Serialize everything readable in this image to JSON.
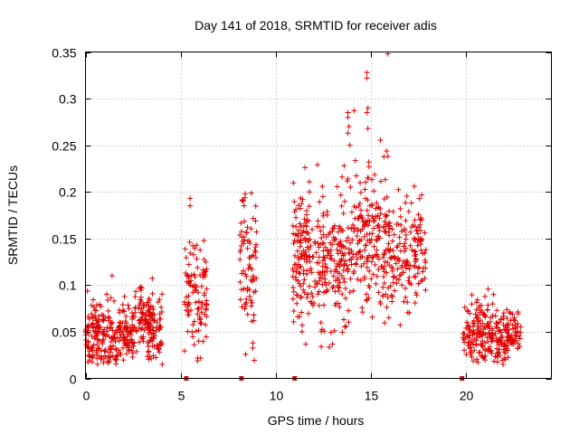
{
  "chart_data": {
    "type": "scatter",
    "title": "Day 141 of 2018, SRMTID for receiver adis",
    "xlabel": "GPS time / hours",
    "ylabel": "SRMTID / TECUs",
    "xlim": [
      0,
      24.5
    ],
    "ylim": [
      0,
      0.35
    ],
    "xticks": [
      0,
      5,
      10,
      15,
      20
    ],
    "yticks": [
      0,
      0.05,
      0.1,
      0.15,
      0.2,
      0.25,
      0.3,
      0.35
    ],
    "xtick_labels": [
      "0",
      "5",
      "10",
      "15",
      "20"
    ],
    "ytick_labels": [
      "0",
      "0.05",
      "0.1",
      "0.15",
      "0.2",
      "0.25",
      "0.3",
      "0.35"
    ],
    "grid": true,
    "marker": "+",
    "color": "#e00000",
    "gap_markers_x": [
      5.3,
      8.2,
      11.0,
      19.8
    ],
    "clusters": [
      {
        "x_start": 0.0,
        "x_end": 1.7,
        "y_center": 0.045,
        "y_spread": 0.018,
        "count": 170
      },
      {
        "x_start": 1.7,
        "x_end": 2.6,
        "y_center": 0.05,
        "y_spread": 0.015,
        "count": 90
      },
      {
        "x_start": 2.6,
        "x_end": 3.6,
        "y_center": 0.065,
        "y_spread": 0.017,
        "count": 90
      },
      {
        "x_start": 3.3,
        "x_end": 4.1,
        "y_center": 0.05,
        "y_spread": 0.016,
        "count": 60
      },
      {
        "x_start": 5.2,
        "x_end": 5.8,
        "y_center": 0.095,
        "y_spread": 0.03,
        "count": 50
      },
      {
        "x_start": 5.8,
        "x_end": 6.4,
        "y_center": 0.09,
        "y_spread": 0.028,
        "count": 55
      },
      {
        "x_start": 8.1,
        "x_end": 9.0,
        "y_center": 0.12,
        "y_spread": 0.04,
        "count": 80
      },
      {
        "x_start": 10.9,
        "x_end": 12.0,
        "y_center": 0.135,
        "y_spread": 0.035,
        "count": 130
      },
      {
        "x_start": 12.0,
        "x_end": 14.0,
        "y_center": 0.125,
        "y_spread": 0.035,
        "count": 190
      },
      {
        "x_start": 14.0,
        "x_end": 16.0,
        "y_center": 0.15,
        "y_spread": 0.04,
        "count": 200
      },
      {
        "x_start": 16.0,
        "x_end": 17.9,
        "y_center": 0.135,
        "y_spread": 0.03,
        "count": 150
      },
      {
        "x_start": 19.8,
        "x_end": 21.2,
        "y_center": 0.05,
        "y_spread": 0.016,
        "count": 130
      },
      {
        "x_start": 21.2,
        "x_end": 22.9,
        "y_center": 0.045,
        "y_spread": 0.014,
        "count": 150
      }
    ],
    "outliers": [
      {
        "x": 15.9,
        "y": 0.348
      },
      {
        "x": 14.8,
        "y": 0.328
      },
      {
        "x": 14.8,
        "y": 0.322
      },
      {
        "x": 14.85,
        "y": 0.29
      },
      {
        "x": 14.8,
        "y": 0.285
      },
      {
        "x": 14.85,
        "y": 0.268
      },
      {
        "x": 13.8,
        "y": 0.285
      },
      {
        "x": 13.8,
        "y": 0.28
      },
      {
        "x": 13.85,
        "y": 0.27
      },
      {
        "x": 13.8,
        "y": 0.263
      },
      {
        "x": 13.9,
        "y": 0.25
      },
      {
        "x": 15.9,
        "y": 0.238
      },
      {
        "x": 14.9,
        "y": 0.232
      },
      {
        "x": 12.2,
        "y": 0.229
      },
      {
        "x": 13.6,
        "y": 0.228
      },
      {
        "x": 5.5,
        "y": 0.193
      },
      {
        "x": 5.5,
        "y": 0.185
      },
      {
        "x": 8.4,
        "y": 0.198
      },
      {
        "x": 8.3,
        "y": 0.191
      },
      {
        "x": 1.4,
        "y": 0.11
      },
      {
        "x": 12.4,
        "y": 0.034
      },
      {
        "x": 8.8,
        "y": 0.038
      }
    ]
  }
}
